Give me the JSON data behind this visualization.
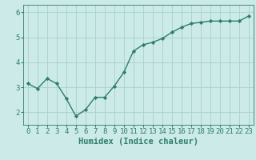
{
  "x": [
    0,
    1,
    2,
    3,
    4,
    5,
    6,
    7,
    8,
    9,
    10,
    11,
    12,
    13,
    14,
    15,
    16,
    17,
    18,
    19,
    20,
    21,
    22,
    23
  ],
  "y": [
    3.15,
    2.95,
    3.35,
    3.15,
    2.55,
    1.85,
    2.1,
    2.6,
    2.6,
    3.05,
    3.6,
    4.45,
    4.7,
    4.8,
    4.95,
    5.2,
    5.4,
    5.55,
    5.6,
    5.65,
    5.65,
    5.65,
    5.65,
    5.85
  ],
  "xlabel": "Humidex (Indice chaleur)",
  "xlim": [
    -0.5,
    23.5
  ],
  "ylim": [
    1.5,
    6.3
  ],
  "yticks": [
    2,
    3,
    4,
    5,
    6
  ],
  "xticks": [
    0,
    1,
    2,
    3,
    4,
    5,
    6,
    7,
    8,
    9,
    10,
    11,
    12,
    13,
    14,
    15,
    16,
    17,
    18,
    19,
    20,
    21,
    22,
    23
  ],
  "line_color": "#2e7d6e",
  "bg_color": "#cceae8",
  "grid_color": "#aad4d0",
  "marker": "D",
  "marker_size": 2.2,
  "line_width": 1.0,
  "xlabel_fontsize": 7.5,
  "tick_fontsize": 6.5
}
